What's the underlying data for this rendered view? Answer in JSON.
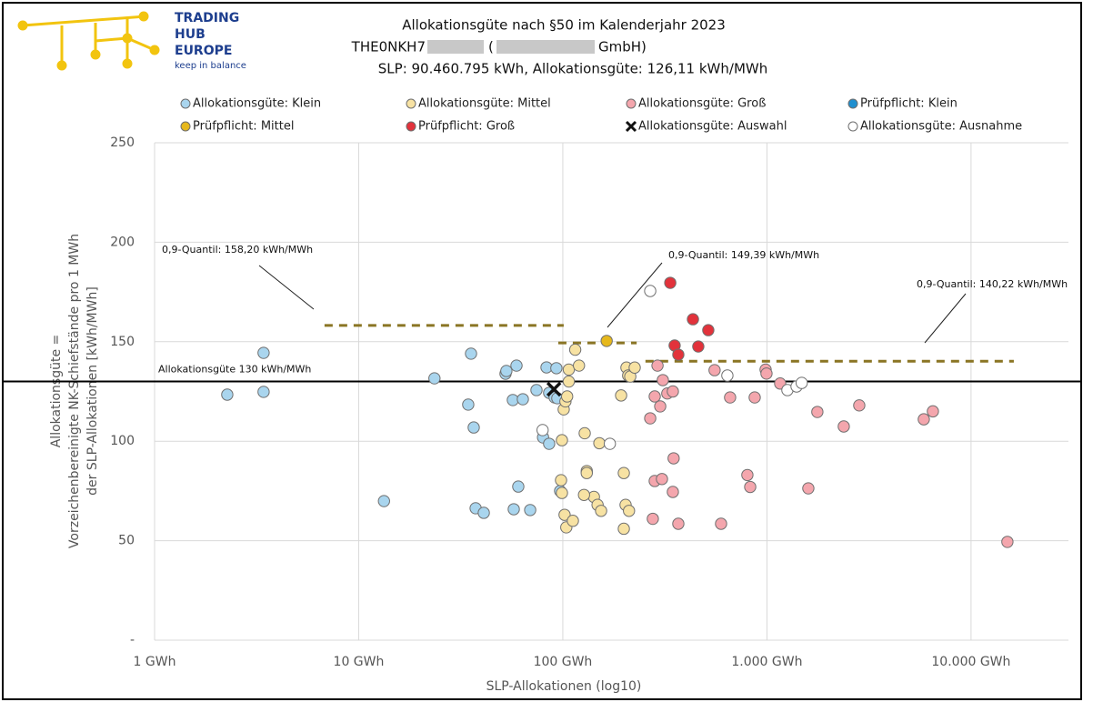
{
  "logo": [
    "TRADING",
    "HUB",
    "EUROPE",
    "keep in balance"
  ],
  "chart_data": {
    "type": "scatter",
    "title": "Allokationsgüte nach §50 im Kalenderjahr 2023",
    "subtitle_parts": [
      "THE0NKH7",
      "(",
      "GmbH)"
    ],
    "summary": "SLP: 90.460.795 kWh, Allokationsgüte: 126,11 kWh/MWh",
    "x_label": "SLP-Allokationen (log10)",
    "y_label": [
      "Allokationsgüte =",
      "Vorzeichenbereinigte NK-Schiefstände pro 1 MWh",
      "der SLP-Allokationen [kWh/MWh]"
    ],
    "xscale": "log",
    "xlim": [
      1,
      30000
    ],
    "xticks": [
      {
        "value": 1,
        "label": "1 GWh"
      },
      {
        "value": 10,
        "label": "10 GWh"
      },
      {
        "value": 100,
        "label": "100 GWh"
      },
      {
        "value": 1000,
        "label": "1.000 GWh"
      },
      {
        "value": 10000,
        "label": "10.000 GWh"
      }
    ],
    "ylim": [
      0,
      250
    ],
    "yticks": [
      {
        "value": 0,
        "label": "-"
      },
      50,
      100,
      150,
      200,
      250
    ],
    "grid": true,
    "threshold": {
      "label": "Allokationsgüte 130 kWh/MWh",
      "value": 130
    },
    "quantiles": [
      {
        "label": "0,9-Quantil: 158,20 kWh/MWh",
        "value": 158.2,
        "x": [
          6.8,
          101
        ]
      },
      {
        "label": "0,9-Quantil: 149,39 kWh/MWh",
        "value": 149.39,
        "x": [
          95,
          230
        ]
      },
      {
        "label": "0,9-Quantil: 140,22 kWh/MWh",
        "value": 140.22,
        "x": [
          254,
          16200
        ]
      }
    ],
    "series": [
      {
        "name": "Allokationsgüte: Klein",
        "color": "#a9d5ee",
        "marker": "circle",
        "x": [
          2.27,
          3.42,
          3.42,
          13.3,
          23.5,
          34.4,
          35.5,
          36.6,
          37.4,
          41.0,
          52.4,
          52.9,
          56.9,
          57.5,
          60.5,
          59.3,
          63.7,
          69.2,
          74.3,
          83.2,
          85.7,
          80,
          91.2,
          93.0,
          94.0,
          97.0,
          85.7
        ],
        "y": [
          123.4,
          144.4,
          124.8,
          69.9,
          131.6,
          118.4,
          144.0,
          106.9,
          66.3,
          64.0,
          133.9,
          135.3,
          120.7,
          65.8,
          77.2,
          138.0,
          121.1,
          65.4,
          125.7,
          137.1,
          124.3,
          101.9,
          122.0,
          136.7,
          121.6,
          75.0,
          98.7
        ]
      },
      {
        "name": "Allokationsgüte: Mittel",
        "color": "#f7e2a3",
        "marker": "circle",
        "x": [
          98,
          99,
          99,
          101,
          103,
          105,
          107,
          107,
          115,
          120,
          102,
          104,
          112,
          128,
          131,
          131,
          142,
          148,
          151,
          154,
          127,
          193,
          199,
          199,
          203,
          211,
          205,
          209,
          214,
          225
        ],
        "y": [
          80.4,
          74,
          100.5,
          116,
          120,
          122.5,
          136,
          130,
          146,
          138,
          63,
          56.7,
          60,
          104,
          85,
          84,
          72,
          68,
          99,
          65,
          73,
          123,
          84,
          56,
          68,
          65,
          137,
          133,
          132.5,
          137
        ]
      },
      {
        "name": "Allokationsgüte: Groß",
        "color": "#f4a6ad",
        "marker": "circle",
        "x": [
          268,
          282,
          291,
          300,
          309,
          325,
          282,
          276,
          306,
          349,
          346,
          346,
          368,
          554,
          596,
          660,
          802,
          828,
          871,
          985,
          995,
          1161,
          1766,
          1595,
          2379,
          2833,
          5867,
          6501,
          15070
        ],
        "y": [
          111.5,
          122.5,
          138,
          117.5,
          130.7,
          124,
          80,
          61,
          81,
          91.4,
          125,
          74.5,
          58.5,
          135.7,
          58.5,
          122,
          83,
          77,
          122,
          136,
          134,
          129,
          114.7,
          76.3,
          107.4,
          118,
          111,
          115,
          49.4
        ]
      },
      {
        "name": "Prüfpflicht: Klein",
        "color": "#1f8fcf",
        "marker": "circle",
        "x": [],
        "y": []
      },
      {
        "name": "Prüfpflicht:  Mittel",
        "color": "#e6b81c",
        "marker": "circle",
        "x": [
          164
        ],
        "y": [
          150.4
        ]
      },
      {
        "name": "Prüfpflicht:  Groß",
        "color": "#e2323b",
        "marker": "circle",
        "x": [
          336,
          434,
          516,
          353,
          368,
          461
        ],
        "y": [
          179.6,
          161.3,
          155.8,
          148.1,
          143.5,
          147.6
        ]
      },
      {
        "name": "Allokationsgüte: Auswahl",
        "color": "#111111",
        "marker": "x",
        "x": [
          90.46
        ],
        "y": [
          126.11
        ]
      },
      {
        "name": "Allokationsgüte: Ausnahme",
        "color": "#ffffff",
        "marker": "circle",
        "x": [
          268,
          79.6,
          170,
          640,
          1260,
          1397,
          1480
        ],
        "y": [
          175.5,
          105.6,
          98.7,
          133,
          125.7,
          127.5,
          129.3
        ]
      }
    ]
  }
}
